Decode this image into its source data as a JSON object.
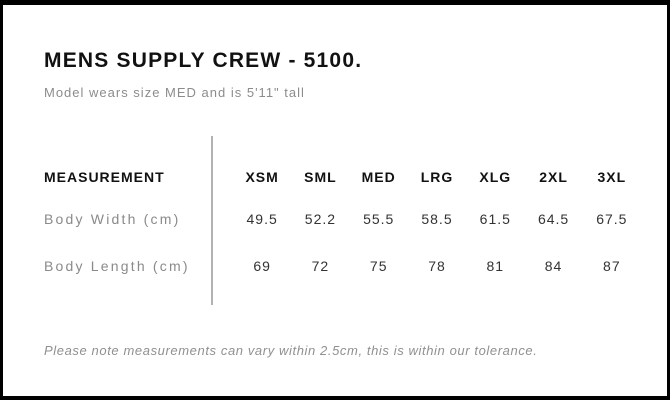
{
  "header": {
    "title": "MENS SUPPLY CREW - 5100.",
    "subtitle": "Model wears size MED and is 5'11\" tall"
  },
  "table": {
    "measurement_header": "MEASUREMENT",
    "sizes": [
      "XSM",
      "SML",
      "MED",
      "LRG",
      "XLG",
      "2XL",
      "3XL"
    ],
    "rows": [
      {
        "label": "Body Width (cm)",
        "values": [
          "49.5",
          "52.2",
          "55.5",
          "58.5",
          "61.5",
          "64.5",
          "67.5"
        ]
      },
      {
        "label": "Body Length (cm)",
        "values": [
          "69",
          "72",
          "75",
          "78",
          "81",
          "84",
          "87"
        ]
      }
    ]
  },
  "footer": {
    "note": "Please note measurements can vary within 2.5cm, this is within our tolerance."
  },
  "colors": {
    "background": "#ffffff",
    "frame_border": "#000000",
    "title_text": "#111111",
    "muted_text": "#8c8c8c",
    "value_text": "#333333",
    "divider": "#b2b2b2"
  }
}
